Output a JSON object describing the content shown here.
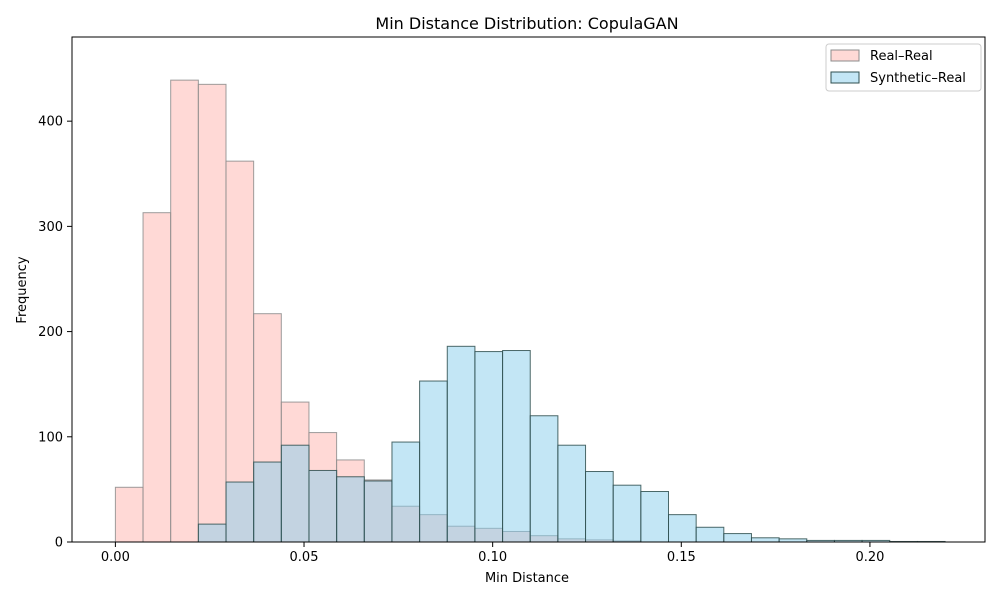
{
  "chart_data": {
    "type": "bar",
    "title": "Min Distance Distribution: CopulaGAN",
    "xlabel": "Min Distance",
    "ylabel": "Frequency",
    "xlim": [
      -0.0115,
      0.2305
    ],
    "ylim": [
      0,
      480
    ],
    "x_ticks": [
      0.0,
      0.05,
      0.1,
      0.15,
      0.2
    ],
    "x_tick_labels": [
      "0.00",
      "0.05",
      "0.10",
      "0.15",
      "0.20"
    ],
    "y_ticks": [
      0,
      100,
      200,
      300,
      400
    ],
    "y_tick_labels": [
      "0",
      "100",
      "200",
      "300",
      "400"
    ],
    "legend_position": "top-right",
    "series": [
      {
        "name": "Real–Real",
        "color": "#ffc0bb",
        "edge": "#8c8c8c",
        "opacity": 0.6,
        "bin_start": 0.0,
        "bin_width": 0.00733,
        "values": [
          52,
          313,
          439,
          435,
          362,
          217,
          133,
          104,
          78,
          59,
          34,
          26,
          15,
          13,
          10,
          6,
          3,
          2,
          1,
          0,
          0,
          0,
          0,
          0,
          0,
          0,
          0,
          0,
          0,
          0
        ]
      },
      {
        "name": "Synthetic–Real",
        "color": "#87ceeb",
        "edge": "#2f4f4f",
        "opacity": 0.5,
        "bin_start": 0.022,
        "bin_width": 0.00733,
        "values": [
          17,
          57,
          76,
          92,
          68,
          62,
          58,
          95,
          153,
          186,
          181,
          182,
          120,
          92,
          67,
          54,
          48,
          26,
          14,
          8,
          4,
          3,
          1.5,
          1.5,
          1.5,
          0.5,
          0.5,
          0
        ]
      }
    ]
  }
}
